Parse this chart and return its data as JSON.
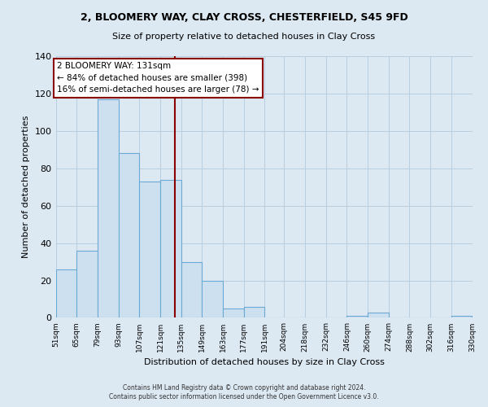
{
  "title": "2, BLOOMERY WAY, CLAY CROSS, CHESTERFIELD, S45 9FD",
  "subtitle": "Size of property relative to detached houses in Clay Cross",
  "xlabel": "Distribution of detached houses by size in Clay Cross",
  "ylabel": "Number of detached properties",
  "bar_color": "#cde0f0",
  "bar_edge_color": "#6aaad4",
  "background_color": "#dce8f2",
  "plot_bg_color": "#dce8f2",
  "grid_color": "#b8cfe0",
  "vline_x": 131,
  "vline_color": "#8b0000",
  "annotation_title": "2 BLOOMERY WAY: 131sqm",
  "annotation_line1": "← 84% of detached houses are smaller (398)",
  "annotation_line2": "16% of semi-detached houses are larger (78) →",
  "annotation_box_color": "#ffffff",
  "annotation_box_edge": "#8b0000",
  "bins": [
    51,
    65,
    79,
    93,
    107,
    121,
    135,
    149,
    163,
    177,
    191,
    204,
    218,
    232,
    246,
    260,
    274,
    288,
    302,
    316,
    330
  ],
  "counts": [
    26,
    36,
    117,
    88,
    73,
    74,
    30,
    20,
    5,
    6,
    0,
    0,
    0,
    0,
    1,
    3,
    0,
    0,
    0,
    1
  ],
  "ylim": [
    0,
    140
  ],
  "yticks": [
    0,
    20,
    40,
    60,
    80,
    100,
    120,
    140
  ],
  "xtick_labels": [
    "51sqm",
    "65sqm",
    "79sqm",
    "93sqm",
    "107sqm",
    "121sqm",
    "135sqm",
    "149sqm",
    "163sqm",
    "177sqm",
    "191sqm",
    "204sqm",
    "218sqm",
    "232sqm",
    "246sqm",
    "260sqm",
    "274sqm",
    "288sqm",
    "302sqm",
    "316sqm",
    "330sqm"
  ],
  "footer_line1": "Contains HM Land Registry data © Crown copyright and database right 2024.",
  "footer_line2": "Contains public sector information licensed under the Open Government Licence v3.0."
}
